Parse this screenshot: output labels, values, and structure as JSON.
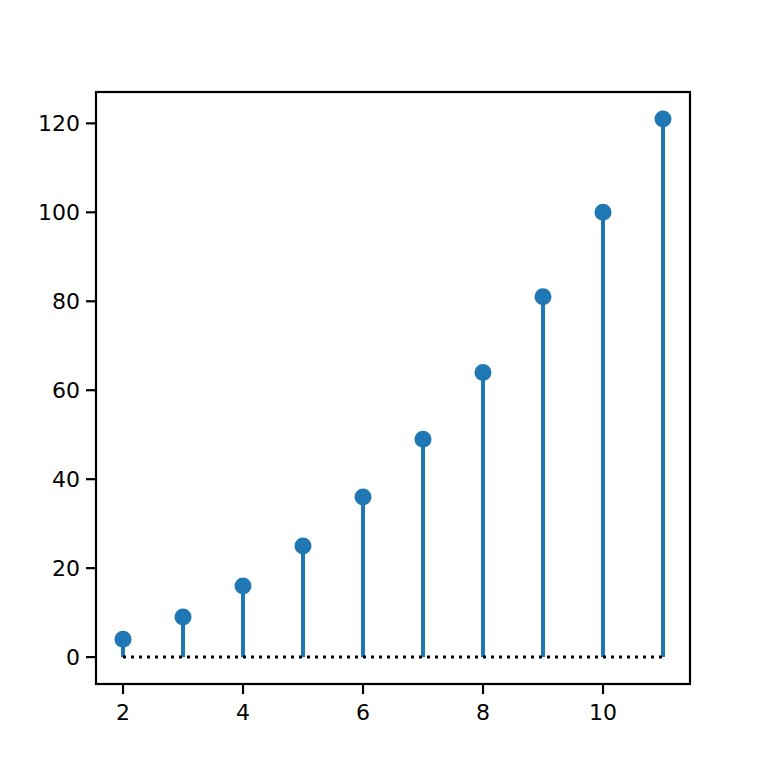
{
  "chart_data": {
    "type": "stem",
    "x": [
      2,
      3,
      4,
      5,
      6,
      7,
      8,
      9,
      10,
      11
    ],
    "values": [
      4,
      9,
      16,
      25,
      36,
      49,
      64,
      81,
      100,
      121
    ],
    "baseline": 0,
    "color": "#1f77b4",
    "marker": "circle",
    "xlim": [
      1.55,
      11.45
    ],
    "xticks": [
      2,
      4,
      6,
      8,
      10
    ],
    "ylim": [
      -6.05,
      127.05
    ],
    "yticks": [
      0,
      20,
      40,
      60,
      80,
      100,
      120
    ],
    "grid": false
  }
}
